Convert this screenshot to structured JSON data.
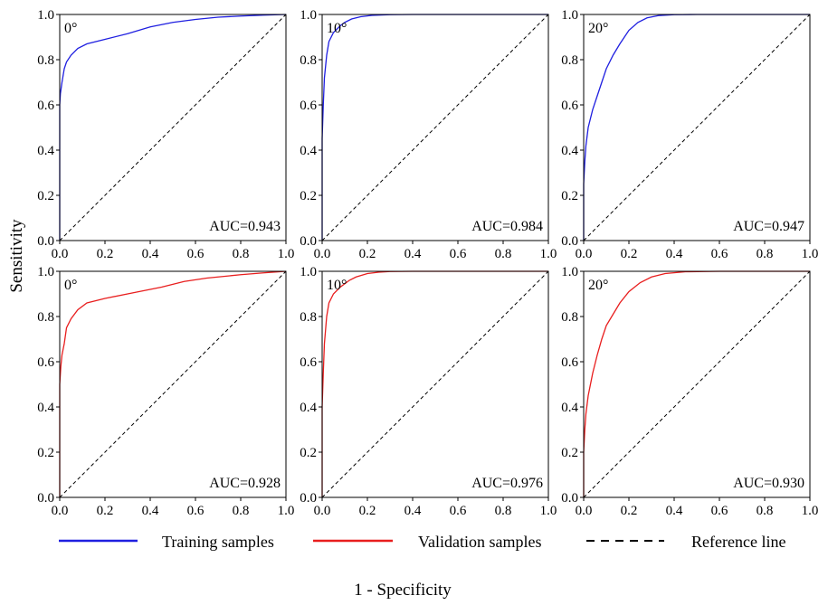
{
  "figure": {
    "ylabel": "Sensitivity",
    "xlabel": "1 - Specificity",
    "legend": [
      {
        "label": "Training samples",
        "color": "#1f1fe0",
        "style": "solid"
      },
      {
        "label": "Validation samples",
        "color": "#e81e1e",
        "style": "solid"
      },
      {
        "label": "Reference line",
        "color": "#000000",
        "style": "dashed"
      }
    ]
  },
  "chart_data": [
    {
      "type": "line",
      "panel": "training-0",
      "title": "0°",
      "auc_label": "AUC=0.943",
      "xlim": [
        0,
        1
      ],
      "ylim": [
        0,
        1
      ],
      "xticks": [
        "0.0",
        "0.2",
        "0.4",
        "0.6",
        "0.8",
        "1.0"
      ],
      "yticks": [
        "0.0",
        "0.2",
        "0.4",
        "0.6",
        "0.8",
        "1.0"
      ],
      "series": [
        {
          "name": "Training samples",
          "color": "#1f1fe0",
          "x": [
            0,
            0,
            0.003,
            0.01,
            0.02,
            0.03,
            0.05,
            0.08,
            0.12,
            0.2,
            0.3,
            0.4,
            0.5,
            0.6,
            0.7,
            0.8,
            0.9,
            1.0
          ],
          "y": [
            0,
            0.6,
            0.65,
            0.7,
            0.76,
            0.79,
            0.82,
            0.85,
            0.87,
            0.89,
            0.915,
            0.945,
            0.965,
            0.978,
            0.988,
            0.993,
            0.997,
            1.0
          ]
        },
        {
          "name": "Reference line",
          "color": "#000000",
          "dashed": true,
          "x": [
            0,
            1
          ],
          "y": [
            0,
            1
          ]
        }
      ]
    },
    {
      "type": "line",
      "panel": "training-10",
      "title": "10°",
      "auc_label": "AUC=0.984",
      "xlim": [
        0,
        1
      ],
      "ylim": [
        0,
        1
      ],
      "xticks": [
        "0.0",
        "0.2",
        "0.4",
        "0.6",
        "0.8",
        "1.0"
      ],
      "yticks": [
        "0.0",
        "0.2",
        "0.4",
        "0.6",
        "0.8",
        "1.0"
      ],
      "series": [
        {
          "name": "Training samples",
          "color": "#1f1fe0",
          "x": [
            0,
            0,
            0.005,
            0.01,
            0.02,
            0.03,
            0.05,
            0.08,
            0.1,
            0.13,
            0.17,
            0.22,
            0.3,
            0.4,
            0.6,
            1.0
          ],
          "y": [
            0,
            0.45,
            0.6,
            0.72,
            0.82,
            0.88,
            0.92,
            0.95,
            0.965,
            0.98,
            0.99,
            0.996,
            0.999,
            1.0,
            1.0,
            1.0
          ]
        },
        {
          "name": "Reference line",
          "color": "#000000",
          "dashed": true,
          "x": [
            0,
            1
          ],
          "y": [
            0,
            1
          ]
        }
      ]
    },
    {
      "type": "line",
      "panel": "training-20",
      "title": "20°",
      "auc_label": "AUC=0.947",
      "xlim": [
        0,
        1
      ],
      "ylim": [
        0,
        1
      ],
      "xticks": [
        "0.0",
        "0.2",
        "0.4",
        "0.6",
        "0.8",
        "1.0"
      ],
      "yticks": [
        "0.0",
        "0.2",
        "0.4",
        "0.6",
        "0.8",
        "1.0"
      ],
      "series": [
        {
          "name": "Training samples",
          "color": "#1f1fe0",
          "x": [
            0,
            0,
            0.005,
            0.01,
            0.02,
            0.04,
            0.06,
            0.08,
            0.1,
            0.13,
            0.16,
            0.2,
            0.24,
            0.28,
            0.33,
            0.4,
            0.5,
            0.7,
            1.0
          ],
          "y": [
            0,
            0.25,
            0.35,
            0.42,
            0.5,
            0.58,
            0.64,
            0.7,
            0.76,
            0.82,
            0.87,
            0.93,
            0.965,
            0.985,
            0.995,
            0.999,
            1.0,
            1.0,
            1.0
          ]
        },
        {
          "name": "Reference line",
          "color": "#000000",
          "dashed": true,
          "x": [
            0,
            1
          ],
          "y": [
            0,
            1
          ]
        }
      ]
    },
    {
      "type": "line",
      "panel": "validation-0",
      "title": "0°",
      "auc_label": "AUC=0.928",
      "xlim": [
        0,
        1
      ],
      "ylim": [
        0,
        1
      ],
      "xticks": [
        "0.0",
        "0.2",
        "0.4",
        "0.6",
        "0.8",
        "1.0"
      ],
      "yticks": [
        "0.0",
        "0.2",
        "0.4",
        "0.6",
        "0.8",
        "1.0"
      ],
      "series": [
        {
          "name": "Validation samples",
          "color": "#e81e1e",
          "x": [
            0,
            0,
            0.005,
            0.01,
            0.02,
            0.03,
            0.05,
            0.08,
            0.12,
            0.2,
            0.3,
            0.45,
            0.55,
            0.65,
            0.8,
            0.9,
            1.0
          ],
          "y": [
            0,
            0.5,
            0.58,
            0.63,
            0.68,
            0.75,
            0.79,
            0.83,
            0.86,
            0.88,
            0.9,
            0.93,
            0.955,
            0.97,
            0.985,
            0.993,
            1.0
          ]
        },
        {
          "name": "Reference line",
          "color": "#000000",
          "dashed": true,
          "x": [
            0,
            1
          ],
          "y": [
            0,
            1
          ]
        }
      ]
    },
    {
      "type": "line",
      "panel": "validation-10",
      "title": "10°",
      "auc_label": "AUC=0.976",
      "xlim": [
        0,
        1
      ],
      "ylim": [
        0,
        1
      ],
      "xticks": [
        "0.0",
        "0.2",
        "0.4",
        "0.6",
        "0.8",
        "1.0"
      ],
      "yticks": [
        "0.0",
        "0.2",
        "0.4",
        "0.6",
        "0.8",
        "1.0"
      ],
      "series": [
        {
          "name": "Validation samples",
          "color": "#e81e1e",
          "x": [
            0,
            0,
            0.005,
            0.01,
            0.02,
            0.03,
            0.05,
            0.08,
            0.12,
            0.15,
            0.2,
            0.25,
            0.3,
            0.4,
            0.6,
            1.0
          ],
          "y": [
            0,
            0.4,
            0.55,
            0.68,
            0.8,
            0.86,
            0.9,
            0.93,
            0.96,
            0.975,
            0.99,
            0.996,
            0.999,
            1.0,
            1.0,
            1.0
          ]
        },
        {
          "name": "Reference line",
          "color": "#000000",
          "dashed": true,
          "x": [
            0,
            1
          ],
          "y": [
            0,
            1
          ]
        }
      ]
    },
    {
      "type": "line",
      "panel": "validation-20",
      "title": "20°",
      "auc_label": "AUC=0.930",
      "xlim": [
        0,
        1
      ],
      "ylim": [
        0,
        1
      ],
      "xticks": [
        "0.0",
        "0.2",
        "0.4",
        "0.6",
        "0.8",
        "1.0"
      ],
      "yticks": [
        "0.0",
        "0.2",
        "0.4",
        "0.6",
        "0.8",
        "1.0"
      ],
      "series": [
        {
          "name": "Validation samples",
          "color": "#e81e1e",
          "x": [
            0,
            0,
            0.005,
            0.01,
            0.02,
            0.04,
            0.06,
            0.08,
            0.1,
            0.13,
            0.16,
            0.2,
            0.25,
            0.3,
            0.36,
            0.45,
            0.6,
            1.0
          ],
          "y": [
            0,
            0.2,
            0.3,
            0.37,
            0.45,
            0.55,
            0.63,
            0.7,
            0.76,
            0.81,
            0.86,
            0.91,
            0.95,
            0.975,
            0.99,
            0.998,
            1.0,
            1.0
          ]
        },
        {
          "name": "Reference line",
          "color": "#000000",
          "dashed": true,
          "x": [
            0,
            1
          ],
          "y": [
            0,
            1
          ]
        }
      ]
    }
  ]
}
